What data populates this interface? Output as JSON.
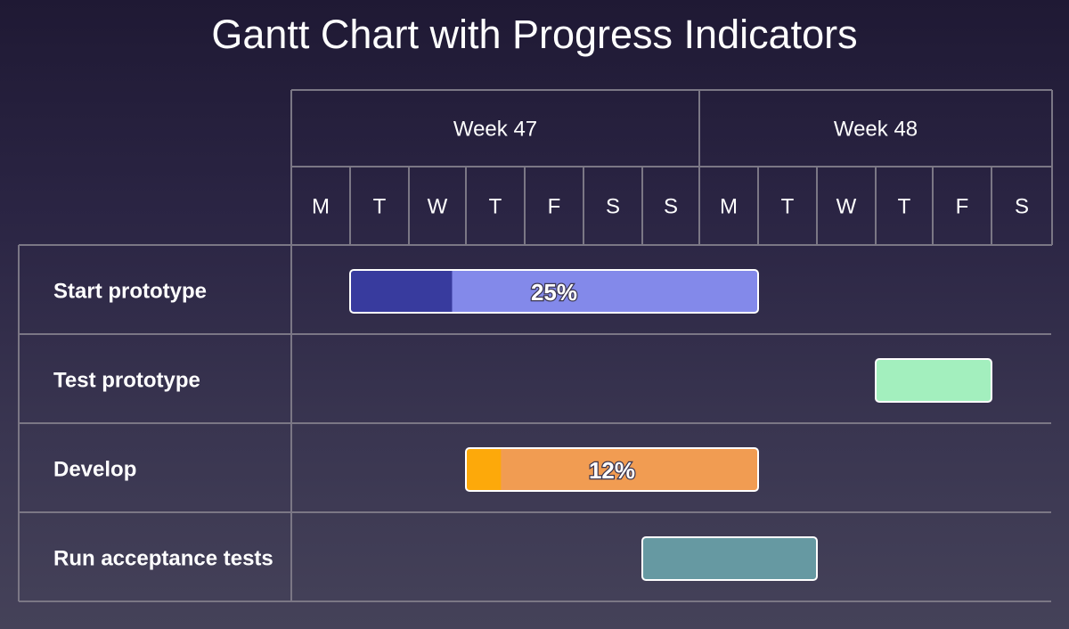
{
  "page": {
    "title": "Gantt Chart with Progress Indicators"
  },
  "chart_data": {
    "type": "gantt",
    "title": "Gantt Chart with Progress Indicators",
    "weeks": [
      {
        "label": "Week 47",
        "days": 7
      },
      {
        "label": "Week 48",
        "days": 6
      }
    ],
    "days": [
      "M",
      "T",
      "W",
      "T",
      "F",
      "S",
      "S",
      "M",
      "T",
      "W",
      "T",
      "F",
      "S"
    ],
    "tasks": [
      {
        "name": "Start prototype",
        "start_day": 1,
        "duration_days": 7,
        "progress": 25,
        "progress_label": "25%",
        "color": "#8389ea",
        "progress_color": "#383b9e"
      },
      {
        "name": "Test prototype",
        "start_day": 10,
        "duration_days": 2,
        "progress": null,
        "progress_label": "",
        "color": "#a3efbe",
        "progress_color": null
      },
      {
        "name": "Develop",
        "start_day": 3,
        "duration_days": 5,
        "progress": 12,
        "progress_label": "12%",
        "color": "#f19c52",
        "progress_color": "#fda90a"
      },
      {
        "name": "Run acceptance tests",
        "start_day": 6,
        "duration_days": 3,
        "progress": null,
        "progress_label": "",
        "color": "#6699a2",
        "progress_color": null
      }
    ]
  }
}
